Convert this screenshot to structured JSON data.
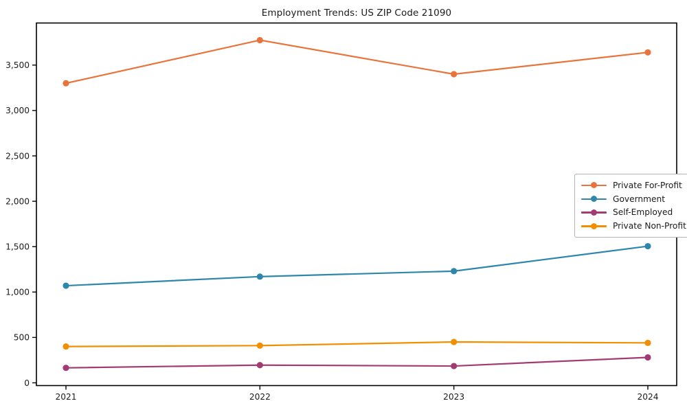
{
  "chart_data": {
    "type": "line",
    "title": "Employment Trends: US ZIP Code 21090",
    "x": [
      "2021",
      "2022",
      "2023",
      "2024"
    ],
    "series": [
      {
        "name": "Private For-Profit",
        "color": "#e8743b",
        "values": [
          3300,
          3775,
          3400,
          3640
        ]
      },
      {
        "name": "Government",
        "color": "#2e86ab",
        "values": [
          1070,
          1170,
          1230,
          1505
        ]
      },
      {
        "name": "Self-Employed",
        "color": "#a23b72",
        "values": [
          165,
          195,
          185,
          280
        ]
      },
      {
        "name": "Private Non-Profit",
        "color": "#f18f01",
        "values": [
          400,
          410,
          450,
          440
        ]
      }
    ],
    "yticks": [
      {
        "value": 0,
        "label": "0"
      },
      {
        "value": 500,
        "label": "500"
      },
      {
        "value": 1000,
        "label": "1,000"
      },
      {
        "value": 1500,
        "label": "1,500"
      },
      {
        "value": 2000,
        "label": "2,000"
      },
      {
        "value": 2500,
        "label": "2,500"
      },
      {
        "value": 3000,
        "label": "3,000"
      },
      {
        "value": 3500,
        "label": "3,500"
      }
    ],
    "xlabel": "",
    "ylabel": "",
    "ylim": [
      -20,
      3950
    ],
    "grid": false,
    "legend_position": "center-right",
    "axis_color": "#000000",
    "text_color": "#1a1a1a",
    "background_color": "#ffffff"
  }
}
